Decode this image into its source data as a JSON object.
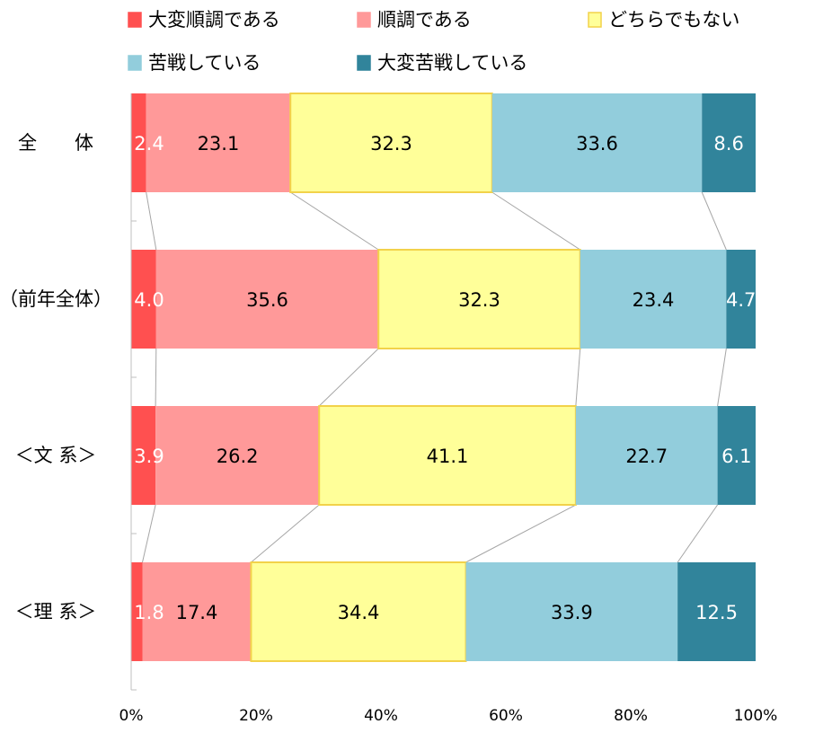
{
  "chart_data": {
    "type": "bar",
    "orientation": "horizontal",
    "stacked": true,
    "percent": true,
    "title": "",
    "xlabel": "",
    "ylabel": "",
    "xlim": [
      0,
      100
    ],
    "x_ticks": [
      "0%",
      "20%",
      "40%",
      "60%",
      "80%",
      "100%"
    ],
    "categories": [
      "全　　体",
      "（前年全体）",
      "＜文 系＞",
      "＜理 系＞"
    ],
    "series": [
      {
        "name": "大変順調である",
        "color": "#ff5050",
        "label_color": "#ffffff",
        "border": "#ff5050",
        "values": [
          2.4,
          4.0,
          3.9,
          1.8
        ],
        "labels": [
          "2.4",
          "4.0",
          "3.9",
          "1.8"
        ]
      },
      {
        "name": "順調である",
        "color": "#ff9999",
        "label_color": "#000000",
        "border": "#ff9999",
        "values": [
          23.1,
          35.6,
          26.2,
          17.4
        ],
        "labels": [
          "23.1",
          "35.6",
          "26.2",
          "17.4"
        ]
      },
      {
        "name": "どちらでもない",
        "color": "#ffff99",
        "label_color": "#000000",
        "border": "#f2d24a",
        "values": [
          32.3,
          32.3,
          41.1,
          34.4
        ],
        "labels": [
          "32.3",
          "32.3",
          "41.1",
          "34.4"
        ]
      },
      {
        "name": "苦戦している",
        "color": "#92cddc",
        "label_color": "#000000",
        "border": "#92cddc",
        "values": [
          33.6,
          23.4,
          22.7,
          33.9
        ],
        "labels": [
          "33.6",
          "23.4",
          "22.7",
          "33.9"
        ]
      },
      {
        "name": "大変苦戦している",
        "color": "#31849b",
        "label_color": "#ffffff",
        "border": "#31849b",
        "values": [
          8.6,
          4.7,
          6.1,
          12.5
        ],
        "labels": [
          "8.6",
          "4.7",
          "6.1",
          "12.5"
        ]
      }
    ],
    "series_lines": true,
    "legend_position": "top"
  }
}
